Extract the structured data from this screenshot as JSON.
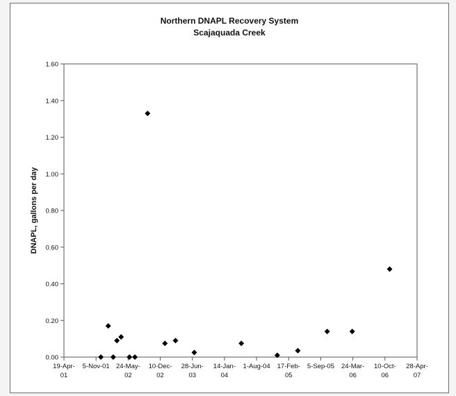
{
  "chart_data": {
    "type": "scatter",
    "title": "Northern DNAPL Recovery System",
    "subtitle": "Scajaquada Creek",
    "ylabel": "DNAPL, gallons per day",
    "xlabel": "",
    "ylim": [
      0,
      1.6
    ],
    "yticks": [
      "0.00",
      "0.20",
      "0.40",
      "0.60",
      "0.80",
      "1.00",
      "1.20",
      "1.40",
      "1.60"
    ],
    "xlim": [
      "2001-04-19",
      "2007-04-28"
    ],
    "xticks": [
      {
        "date": "2001-04-19",
        "line1": "19-Apr-",
        "line2": "01"
      },
      {
        "date": "2001-11-05",
        "line1": "5-Nov-01",
        "line2": ""
      },
      {
        "date": "2002-05-24",
        "line1": "24-May-",
        "line2": "02"
      },
      {
        "date": "2002-12-10",
        "line1": "10-Dec-",
        "line2": "02"
      },
      {
        "date": "2003-06-28",
        "line1": "28-Jun-",
        "line2": "03"
      },
      {
        "date": "2004-01-14",
        "line1": "14-Jan-",
        "line2": "04"
      },
      {
        "date": "2004-08-01",
        "line1": "1-Aug-04",
        "line2": ""
      },
      {
        "date": "2005-02-17",
        "line1": "17-Feb-",
        "line2": "05"
      },
      {
        "date": "2005-09-05",
        "line1": "5-Sep-05",
        "line2": ""
      },
      {
        "date": "2006-03-24",
        "line1": "24-Mar-",
        "line2": "06"
      },
      {
        "date": "2006-10-10",
        "line1": "10-Oct-",
        "line2": "06"
      },
      {
        "date": "2007-04-28",
        "line1": "28-Apr-",
        "line2": "07"
      }
    ],
    "grid": false,
    "marker": "diamond",
    "marker_color": "#000000",
    "points": [
      {
        "x": "2001-12-05",
        "y": 0.0
      },
      {
        "x": "2002-01-20",
        "y": 0.17
      },
      {
        "x": "2002-02-20",
        "y": 0.0
      },
      {
        "x": "2002-03-15",
        "y": 0.09
      },
      {
        "x": "2002-04-10",
        "y": 0.11
      },
      {
        "x": "2002-06-01",
        "y": 0.0
      },
      {
        "x": "2002-07-05",
        "y": 0.0
      },
      {
        "x": "2002-09-22",
        "y": 1.33
      },
      {
        "x": "2003-01-08",
        "y": 0.075
      },
      {
        "x": "2003-03-15",
        "y": 0.09
      },
      {
        "x": "2003-07-10",
        "y": 0.025
      },
      {
        "x": "2004-04-28",
        "y": 0.075
      },
      {
        "x": "2004-12-08",
        "y": 0.01
      },
      {
        "x": "2005-04-15",
        "y": 0.035
      },
      {
        "x": "2005-10-15",
        "y": 0.14
      },
      {
        "x": "2006-03-20",
        "y": 0.14
      },
      {
        "x": "2006-11-08",
        "y": 0.48
      }
    ]
  }
}
